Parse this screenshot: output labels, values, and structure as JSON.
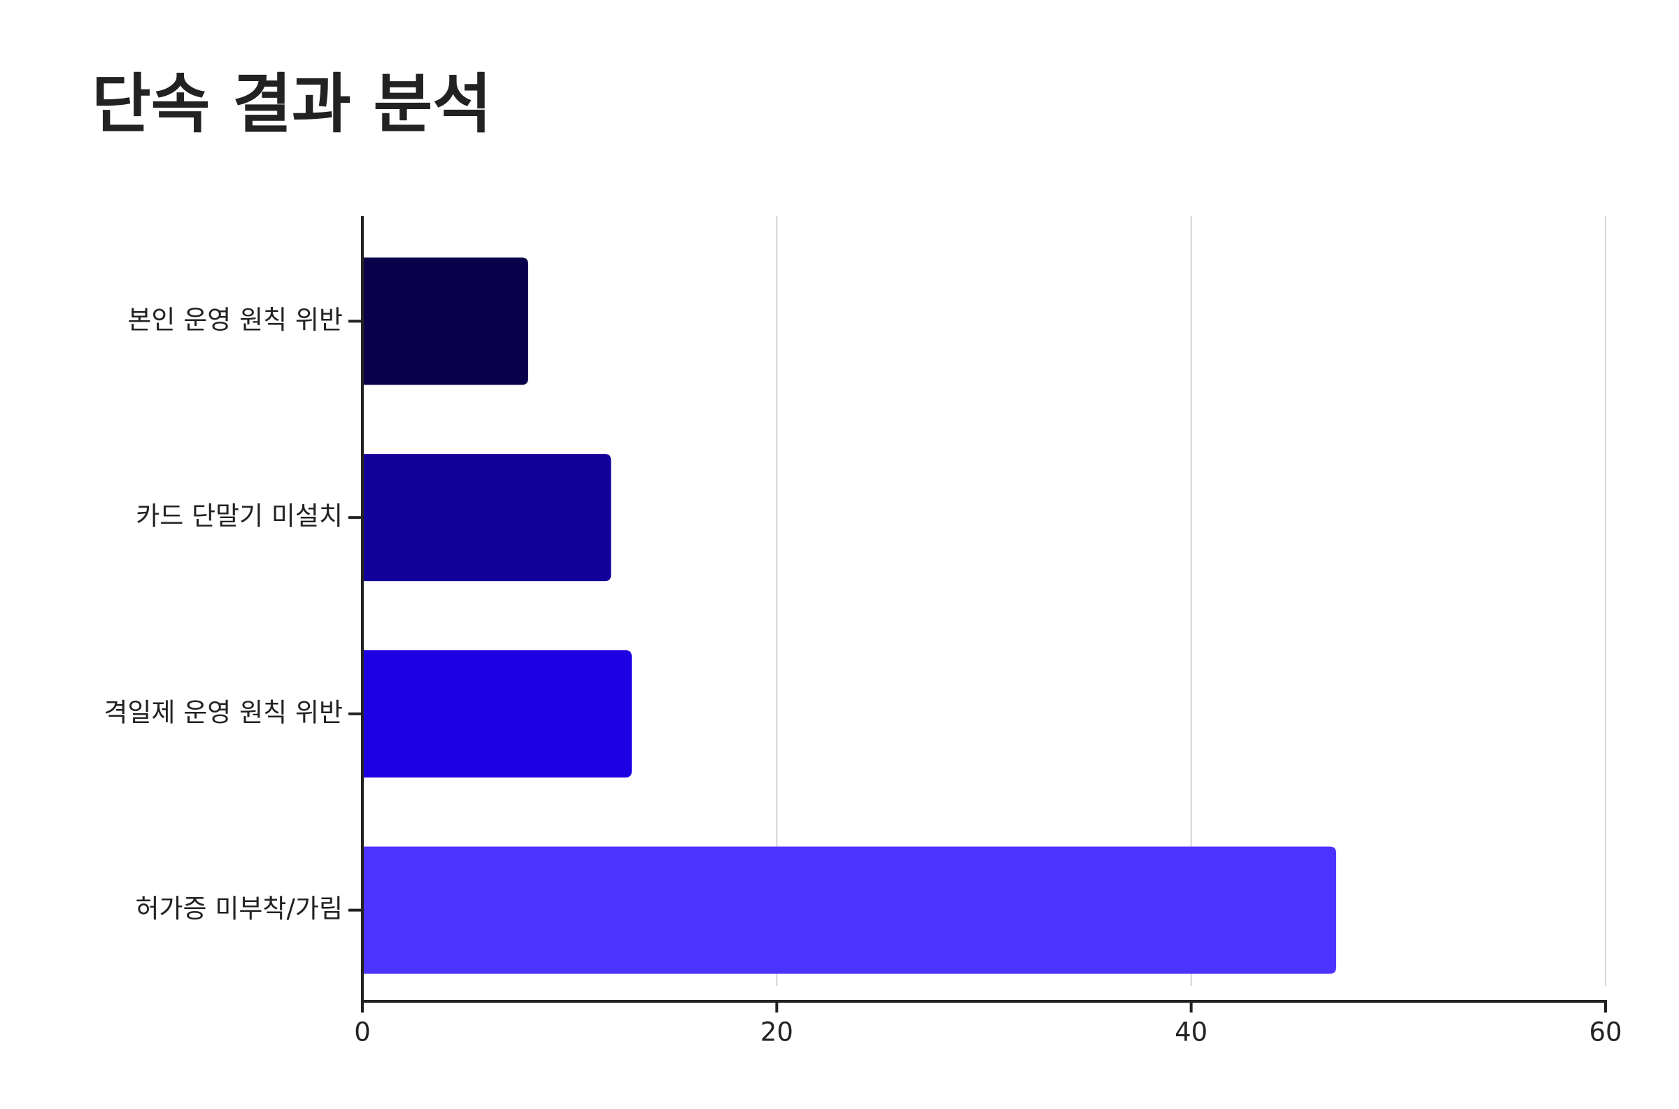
{
  "chart_data": {
    "type": "barh",
    "title": "단속 결과 분석",
    "categories": [
      "본인 운영 원칙 위반",
      "카드 단말기 미설치",
      "격일제 운영 원칙 위반",
      "허가증 미부착/가림"
    ],
    "values": [
      8,
      12,
      13,
      47
    ],
    "colors": [
      "#0a0049",
      "#14009a",
      "#1f00e3",
      "#4c33ff"
    ],
    "xlim": [
      0,
      60
    ],
    "xticks": [
      0,
      20,
      40,
      60
    ],
    "grid": true
  }
}
